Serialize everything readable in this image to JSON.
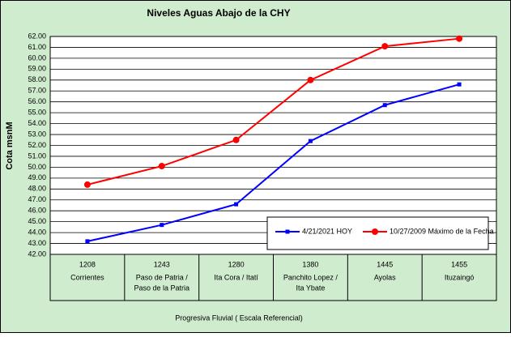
{
  "chart_data": {
    "type": "line",
    "title": "Niveles Aguas Abajo de la CHY",
    "y_label": "Cota msnM",
    "x_label": "Progresiva Fluvial ( Escala Referencial)",
    "km": [
      "1208",
      "1243",
      "1280",
      "1380",
      "1445",
      "1455"
    ],
    "categories": [
      [
        "Corrientes"
      ],
      [
        "Paso de Patria /",
        "Paso de la Patria"
      ],
      [
        "Ita Cora / Itatí"
      ],
      [
        "Panchito Lopez /",
        "Ita Ybate"
      ],
      [
        "Ayolas"
      ],
      [
        "Ituzaingó"
      ]
    ],
    "series": [
      {
        "name": "4/21/2021 HOY",
        "color": "#0000ff",
        "marker": "square",
        "values": [
          43.2,
          44.7,
          46.6,
          52.4,
          55.7,
          57.6
        ]
      },
      {
        "name": "10/27/2009 Máximo de la Fecha",
        "color": "#ff0000",
        "marker": "circle",
        "values": [
          48.4,
          50.1,
          52.5,
          58.0,
          61.1,
          61.8
        ]
      }
    ],
    "ylim": [
      42,
      62
    ],
    "yticks": [
      {
        "value": 42,
        "label": "42.00"
      },
      {
        "value": 43,
        "label": "43.00"
      },
      {
        "value": 44,
        "label": "44.00"
      },
      {
        "value": 45,
        "label": "45.00"
      },
      {
        "value": 46,
        "label": "46.00"
      },
      {
        "value": 47,
        "label": "47.00"
      },
      {
        "value": 48,
        "label": "48.00"
      },
      {
        "value": 49,
        "label": "49.00"
      },
      {
        "value": 50,
        "label": "50.00"
      },
      {
        "value": 51,
        "label": "51.00"
      },
      {
        "value": 52,
        "label": "52.00"
      },
      {
        "value": 53,
        "label": "53.00"
      },
      {
        "value": 54,
        "label": "54.00"
      },
      {
        "value": 55,
        "label": "55.00"
      },
      {
        "value": 56,
        "label": "56.00"
      },
      {
        "value": 57,
        "label": "57.00"
      },
      {
        "value": 58,
        "label": "58.00"
      },
      {
        "value": 59,
        "label": "59.00"
      },
      {
        "value": 60,
        "label": "60.00"
      },
      {
        "value": 61,
        "label": "61.00"
      },
      {
        "value": 62,
        "label": "62.00"
      }
    ],
    "grid": true,
    "legend": "lower right"
  }
}
